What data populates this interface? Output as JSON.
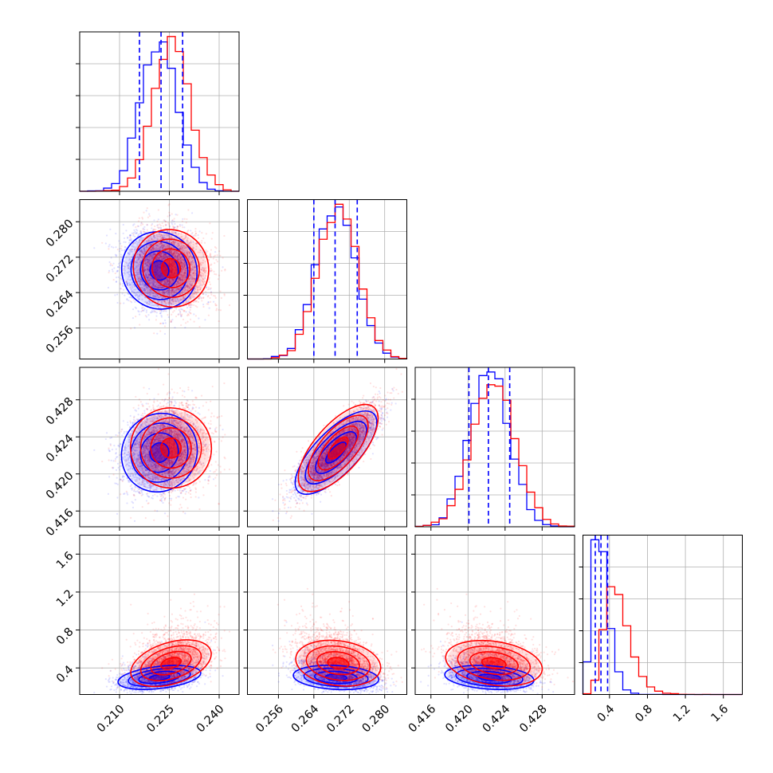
{
  "chart_data": {
    "type": "corner",
    "grid": true,
    "colors": {
      "blue": "#0000ff",
      "red": "#ff0000",
      "grid": "#b0b0b0",
      "frame": "#000000"
    },
    "series": [
      {
        "color": "blue",
        "mean": [
          0.222,
          0.269,
          0.4223,
          0.3
        ],
        "std": [
          0.0055,
          0.0045,
          0.0022,
          0.075
        ],
        "quantiles": [
          [
            0.216,
            0.2225,
            0.229
          ],
          [
            0.264,
            0.2688,
            0.2738
          ],
          [
            0.4201,
            0.4222,
            0.4245
          ],
          [
            0.25,
            0.31,
            0.38
          ]
        ]
      },
      {
        "color": "red",
        "mean": [
          0.2255,
          0.2695,
          0.4228,
          0.45
        ],
        "std": [
          0.0055,
          0.0045,
          0.0024,
          0.14
        ],
        "quantiles": []
      }
    ],
    "correlations": [
      [
        0,
        1,
        -0.15
      ],
      [
        0,
        2,
        0.2
      ],
      [
        1,
        2,
        0.85
      ],
      [
        0,
        3,
        0.3
      ],
      [
        1,
        3,
        -0.15
      ],
      [
        2,
        3,
        -0.2
      ]
    ],
    "params": [
      {
        "range": [
          0.198,
          0.246
        ],
        "ticks": [
          0.21,
          0.225,
          0.24
        ],
        "tick_labels": [
          "0.210",
          "0.225",
          "0.240"
        ]
      },
      {
        "range": [
          0.249,
          0.285
        ],
        "ticks": [
          0.256,
          0.264,
          0.272,
          0.28
        ],
        "tick_labels": [
          "0.256",
          "0.264",
          "0.272",
          "0.280"
        ]
      },
      {
        "range": [
          0.4143,
          0.4315
        ],
        "ticks": [
          0.416,
          0.42,
          0.424,
          0.428
        ],
        "tick_labels": [
          "0.416",
          "0.420",
          "0.424",
          "0.428"
        ]
      },
      {
        "range": [
          0.12,
          1.8
        ],
        "ticks": [
          0.4,
          0.8,
          1.2,
          1.6
        ],
        "tick_labels": [
          "0.4",
          "0.8",
          "1.2",
          "1.6"
        ]
      }
    ]
  }
}
